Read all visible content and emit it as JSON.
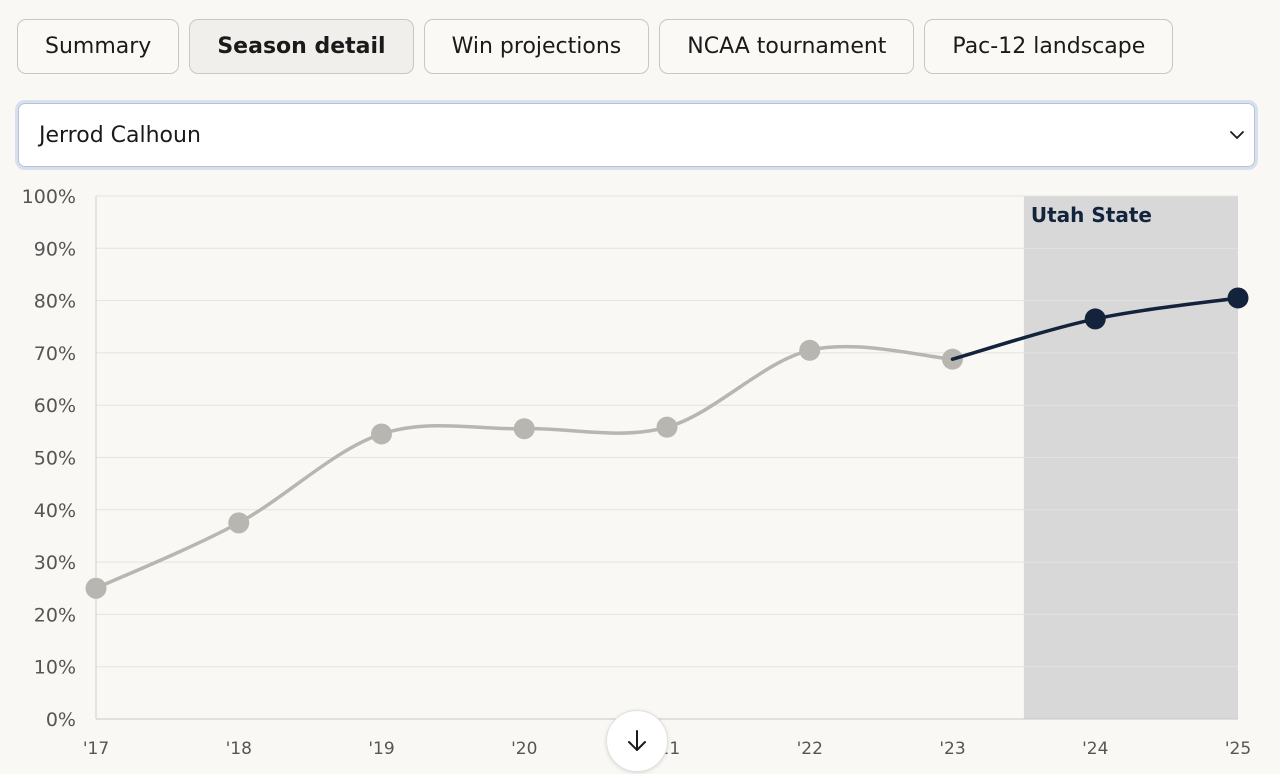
{
  "tabs": [
    {
      "label": "Summary",
      "active": false
    },
    {
      "label": "Season detail",
      "active": true
    },
    {
      "label": "Win projections",
      "active": false
    },
    {
      "label": "NCAA tournament",
      "active": false
    },
    {
      "label": "Pac-12 landscape",
      "active": false
    }
  ],
  "coach_select": {
    "value": "Jerrod Calhoun",
    "icon": "chevron-down-icon"
  },
  "scroll_button": {
    "icon": "arrow-down-icon"
  },
  "colors": {
    "background": "#f9f8f5",
    "history_line": "#b7b6b1",
    "projection_line": "#13233c",
    "shade": "#d7d8d7"
  },
  "chart_data": {
    "type": "line",
    "x": [
      "'17",
      "'18",
      "'19",
      "'20",
      "'21",
      "'22",
      "'23",
      "'24",
      "'25"
    ],
    "ylim": [
      0,
      100
    ],
    "yticks": [
      "0%",
      "10%",
      "20%",
      "30%",
      "40%",
      "50%",
      "60%",
      "70%",
      "80%",
      "90%",
      "100%"
    ],
    "series": [
      {
        "values": [
          25,
          37.5,
          54.5,
          55.5,
          55.8,
          70.5,
          68.8,
          null,
          null
        ],
        "color": "#b7b6b1"
      },
      {
        "values": [
          null,
          null,
          null,
          null,
          null,
          null,
          68.8,
          76.5,
          80.5
        ],
        "color": "#13233c"
      }
    ],
    "shaded_region": {
      "from": "'23",
      "to": "'25",
      "label": "Utah State"
    },
    "grid": true
  }
}
